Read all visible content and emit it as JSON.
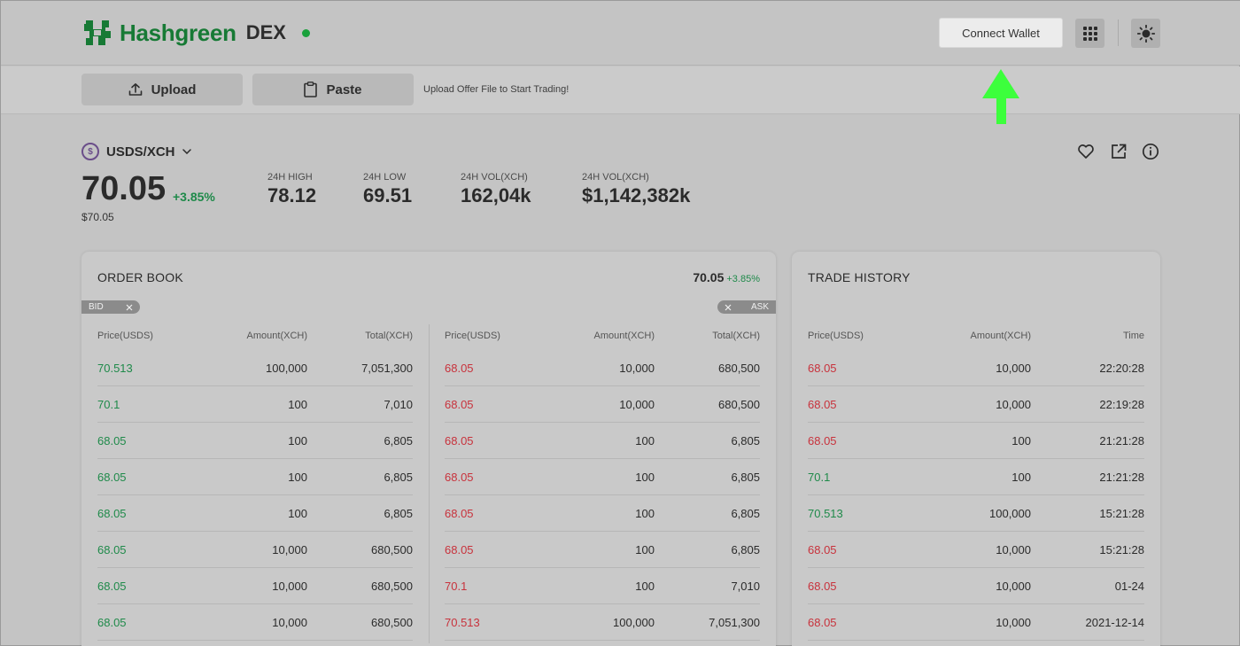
{
  "header": {
    "brand": "Hashgreen",
    "product": "DEX",
    "connect_label": "Connect Wallet",
    "icons": [
      "apps-grid-icon",
      "theme-sun-icon"
    ]
  },
  "toolbar": {
    "upload_label": "Upload",
    "paste_label": "Paste",
    "hint": "Upload Offer File to Start Trading!"
  },
  "market": {
    "pair": "USDS/XCH",
    "coin_symbol": "$",
    "price": "70.05",
    "change": "+3.85%",
    "price_usd": "$70.05",
    "stats": [
      {
        "label": "24H HIGH",
        "value": "78.12"
      },
      {
        "label": "24H LOW",
        "value": "69.51"
      },
      {
        "label": "24H  VOL(XCH)",
        "value": "162,04k"
      },
      {
        "label": "24H  VOL(XCH)",
        "value": "$1,142,382k"
      }
    ]
  },
  "order_book": {
    "title": "ORDER BOOK",
    "price": "70.05",
    "change": "+3.85%",
    "bid_tag": "BID",
    "ask_tag": "ASK",
    "headers": [
      "Price(USDS)",
      "Amount(XCH)",
      "Total(XCH)"
    ],
    "bids": [
      [
        "70.513",
        "100,000",
        "7,051,300"
      ],
      [
        "70.1",
        "100",
        "7,010"
      ],
      [
        "68.05",
        "100",
        "6,805"
      ],
      [
        "68.05",
        "100",
        "6,805"
      ],
      [
        "68.05",
        "100",
        "6,805"
      ],
      [
        "68.05",
        "10,000",
        "680,500"
      ],
      [
        "68.05",
        "10,000",
        "680,500"
      ],
      [
        "68.05",
        "10,000",
        "680,500"
      ]
    ],
    "asks": [
      [
        "68.05",
        "10,000",
        "680,500"
      ],
      [
        "68.05",
        "10,000",
        "680,500"
      ],
      [
        "68.05",
        "100",
        "6,805"
      ],
      [
        "68.05",
        "100",
        "6,805"
      ],
      [
        "68.05",
        "100",
        "6,805"
      ],
      [
        "68.05",
        "100",
        "6,805"
      ],
      [
        "70.1",
        "100",
        "7,010"
      ],
      [
        "70.513",
        "100,000",
        "7,051,300"
      ]
    ]
  },
  "trade_history": {
    "title": "TRADE HISTORY",
    "headers": [
      "Price(USDS)",
      "Amount(XCH)",
      "Time"
    ],
    "rows": [
      {
        "price": "68.05",
        "side": "sell",
        "amount": "10,000",
        "time": "22:20:28"
      },
      {
        "price": "68.05",
        "side": "sell",
        "amount": "10,000",
        "time": "22:19:28"
      },
      {
        "price": "68.05",
        "side": "sell",
        "amount": "100",
        "time": "21:21:28"
      },
      {
        "price": "70.1",
        "side": "buy",
        "amount": "100",
        "time": "21:21:28"
      },
      {
        "price": "70.513",
        "side": "buy",
        "amount": "100,000",
        "time": "15:21:28"
      },
      {
        "price": "68.05",
        "side": "sell",
        "amount": "10,000",
        "time": "15:21:28"
      },
      {
        "price": "68.05",
        "side": "sell",
        "amount": "10,000",
        "time": "01-24"
      },
      {
        "price": "68.05",
        "side": "sell",
        "amount": "10,000",
        "time": "2021-12-14"
      }
    ]
  },
  "colors": {
    "brand_green": "#177a35",
    "bid_green": "#1f8a4a",
    "ask_red": "#c8323c",
    "arrow_green": "#3cff3c"
  }
}
